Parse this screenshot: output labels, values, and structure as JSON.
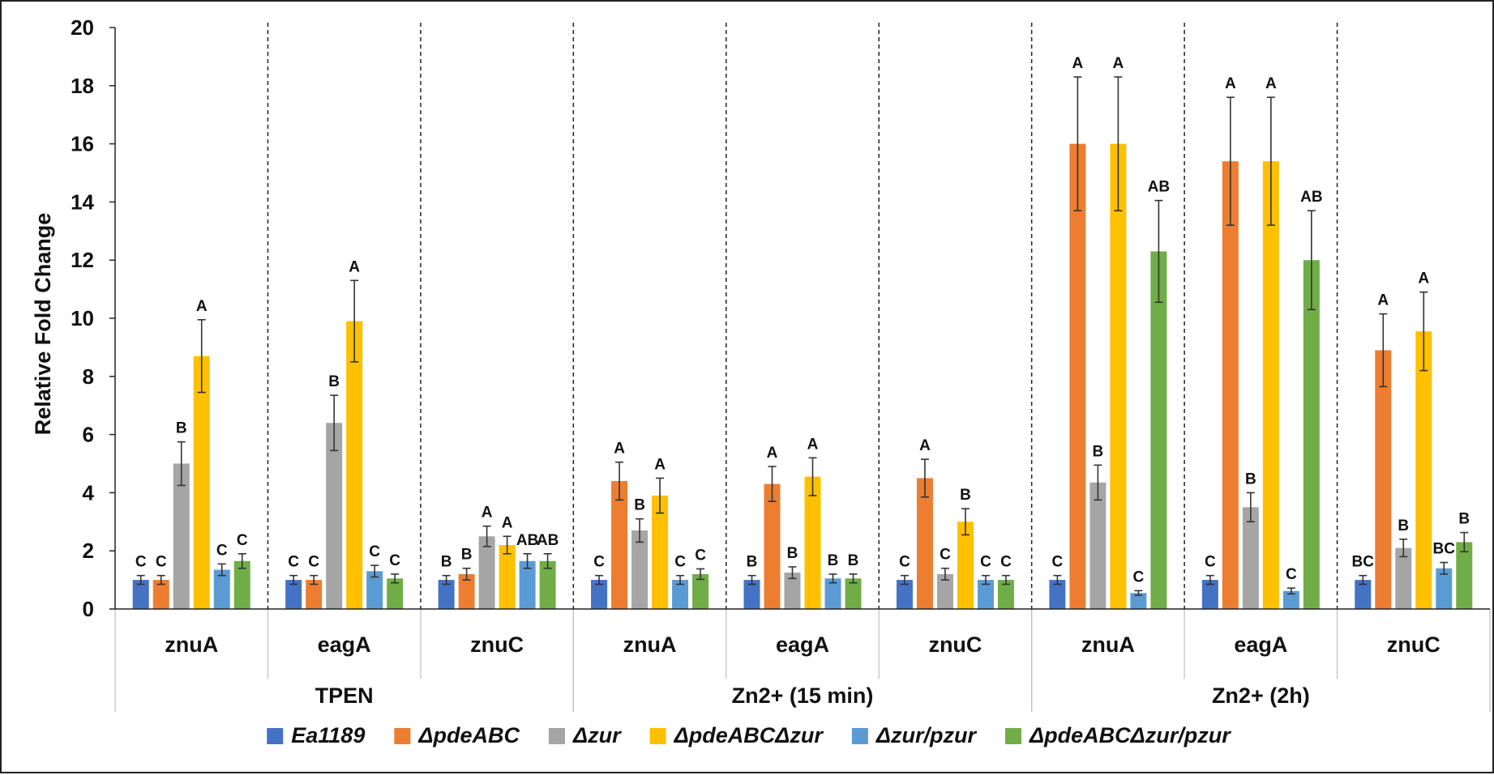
{
  "chart_data": {
    "type": "bar",
    "title": "",
    "xlabel": "",
    "ylabel": "Relative Fold Change",
    "ylim": [
      0,
      20
    ],
    "yticks": [
      0,
      2,
      4,
      6,
      8,
      10,
      12,
      14,
      16,
      18,
      20
    ],
    "legend_position": "bottom",
    "groups": [
      {
        "label": "TPEN",
        "genes": [
          "znuA",
          "eagA",
          "znuC"
        ]
      },
      {
        "label": "Zn2+ (15 min)",
        "genes": [
          "znuA",
          "eagA",
          "znuC"
        ]
      },
      {
        "label": "Zn2+ (2h)",
        "genes": [
          "znuA",
          "eagA",
          "znuC"
        ]
      }
    ],
    "categories": [
      "TPEN znuA",
      "TPEN eagA",
      "TPEN znuC",
      "Zn2+ (15 min) znuA",
      "Zn2+ (15 min) eagA",
      "Zn2+ (15 min) znuC",
      "Zn2+ (2h) znuA",
      "Zn2+ (2h) eagA",
      "Zn2+ (2h) znuC"
    ],
    "series": [
      {
        "name": "Ea1189",
        "color": "#4472C4",
        "values": [
          1.0,
          1.0,
          1.0,
          1.0,
          1.0,
          1.0,
          1.0,
          1.0,
          1.0
        ],
        "errors": [
          0.15,
          0.15,
          0.15,
          0.15,
          0.15,
          0.15,
          0.15,
          0.15,
          0.15
        ],
        "letters": [
          "C",
          "C",
          "B",
          "C",
          "B",
          "C",
          "C",
          "C",
          "BC"
        ]
      },
      {
        "name": "ΔpdeABC",
        "color": "#ED7D31",
        "values": [
          1.0,
          1.0,
          1.2,
          4.4,
          4.3,
          4.5,
          16.0,
          15.4,
          8.9
        ],
        "errors": [
          0.15,
          0.15,
          0.2,
          0.65,
          0.6,
          0.65,
          2.3,
          2.2,
          1.25
        ],
        "letters": [
          "C",
          "C",
          "B",
          "A",
          "A",
          "A",
          "A",
          "A",
          "A"
        ]
      },
      {
        "name": "Δzur",
        "color": "#A5A5A5",
        "values": [
          5.0,
          6.4,
          2.5,
          2.7,
          1.25,
          1.2,
          4.35,
          3.5,
          2.1
        ],
        "errors": [
          0.75,
          0.95,
          0.35,
          0.4,
          0.2,
          0.2,
          0.6,
          0.5,
          0.3
        ],
        "letters": [
          "B",
          "B",
          "A",
          "B",
          "B",
          "C",
          "B",
          "B",
          "B"
        ]
      },
      {
        "name": "ΔpdeABCΔzur",
        "color": "#FFC000",
        "values": [
          8.7,
          9.9,
          2.2,
          3.9,
          4.55,
          3.0,
          16.0,
          15.4,
          9.55
        ],
        "errors": [
          1.25,
          1.4,
          0.3,
          0.6,
          0.65,
          0.45,
          2.3,
          2.2,
          1.35
        ],
        "letters": [
          "A",
          "A",
          "A",
          "A",
          "A",
          "B",
          "A",
          "A",
          "A"
        ]
      },
      {
        "name": "Δzur/pzur",
        "color": "#5B9BD5",
        "values": [
          1.35,
          1.3,
          1.65,
          1.0,
          1.05,
          1.0,
          0.55,
          0.62,
          1.4
        ],
        "errors": [
          0.2,
          0.2,
          0.25,
          0.15,
          0.15,
          0.15,
          0.08,
          0.1,
          0.2
        ],
        "letters": [
          "C",
          "C",
          "AB",
          "C",
          "B",
          "C",
          "C",
          "C",
          "BC"
        ]
      },
      {
        "name": "ΔpdeABCΔzur/pzur",
        "color": "#70AD47",
        "values": [
          1.65,
          1.05,
          1.65,
          1.2,
          1.05,
          1.0,
          12.3,
          12.0,
          2.3
        ],
        "errors": [
          0.25,
          0.15,
          0.25,
          0.18,
          0.15,
          0.15,
          1.75,
          1.7,
          0.33
        ],
        "letters": [
          "C",
          "C",
          "AB",
          "C",
          "B",
          "C",
          "AB",
          "AB",
          "B"
        ]
      }
    ]
  }
}
